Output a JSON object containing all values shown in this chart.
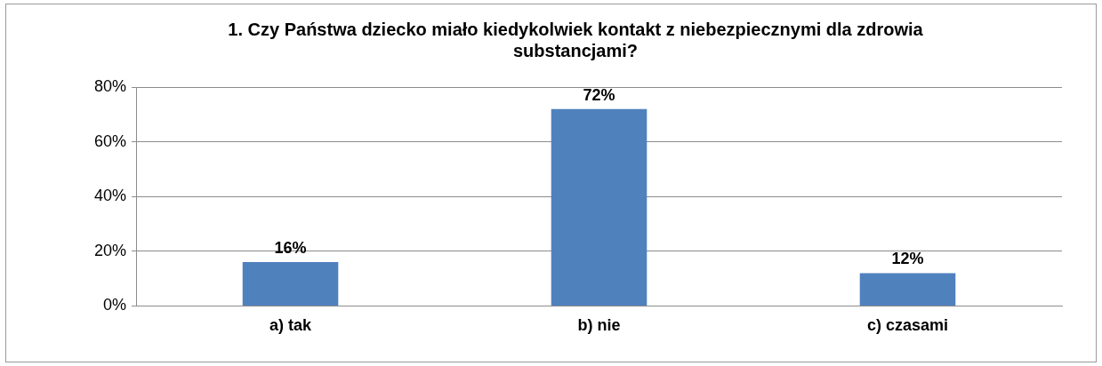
{
  "chart_data": {
    "type": "bar",
    "title": "1. Czy Państwa dziecko miało kiedykolwiek kontakt z niebezpiecznymi dla zdrowia substancjami?",
    "categories": [
      "a) tak",
      "b) nie",
      "c) czasami"
    ],
    "values": [
      16,
      72,
      12
    ],
    "value_labels": [
      "16%",
      "72%",
      "12%"
    ],
    "color": "#4f81bd",
    "ylim": [
      0,
      80
    ],
    "yticks": [
      {
        "value": 0,
        "label": "0%"
      },
      {
        "value": 20,
        "label": "20%"
      },
      {
        "value": 40,
        "label": "40%"
      },
      {
        "value": 60,
        "label": "60%"
      },
      {
        "value": 80,
        "label": "80%"
      }
    ],
    "grid": "y"
  }
}
